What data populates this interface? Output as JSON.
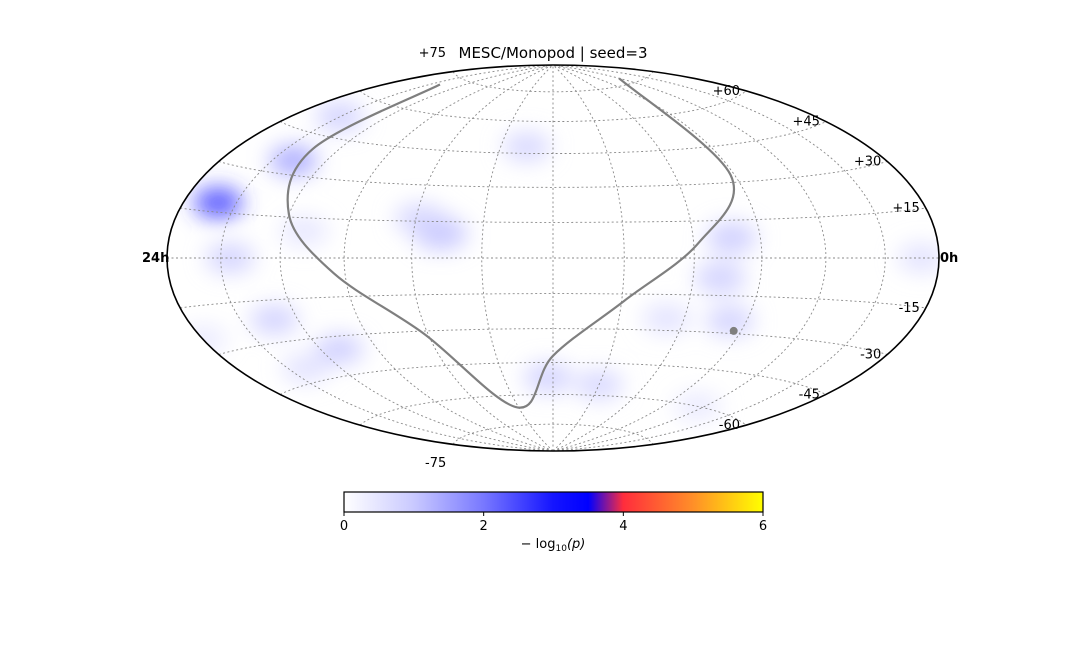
{
  "chart_data": {
    "type": "heatmap",
    "projection": "hammer-aitoff",
    "title": "MESC/Monopod | seed=3",
    "ra_labels": {
      "left": "24h",
      "right": "0h"
    },
    "dec_labels": [
      {
        "value": 75,
        "text": "+75"
      },
      {
        "value": 60,
        "text": "+60"
      },
      {
        "value": 45,
        "text": "+45"
      },
      {
        "value": 30,
        "text": "+30"
      },
      {
        "value": 15,
        "text": "+15"
      },
      {
        "value": -15,
        "text": "-15"
      },
      {
        "value": -30,
        "text": "-30"
      },
      {
        "value": -45,
        "text": "-45"
      },
      {
        "value": -60,
        "text": "-60"
      },
      {
        "value": -75,
        "text": "-75"
      }
    ],
    "grid_lon_step_deg": 30,
    "grid_lat_step_deg": 15,
    "hotspots": [
      {
        "ra_deg": 20,
        "dec_deg": 18,
        "value": 2.6
      },
      {
        "ra_deg": 42,
        "dec_deg": 35,
        "value": 1.5
      },
      {
        "ra_deg": 30,
        "dec_deg": 52,
        "value": 0.9
      },
      {
        "ra_deg": 35,
        "dec_deg": 0,
        "value": 0.9
      },
      {
        "ra_deg": 70,
        "dec_deg": 10,
        "value": 0.5
      },
      {
        "ra_deg": 132,
        "dec_deg": 10,
        "value": 1.1
      },
      {
        "ra_deg": 122,
        "dec_deg": 16,
        "value": 0.8
      },
      {
        "ra_deg": 165,
        "dec_deg": 48,
        "value": 0.8
      },
      {
        "ra_deg": 257,
        "dec_deg": 8,
        "value": 1.0
      },
      {
        "ra_deg": 252,
        "dec_deg": -8,
        "value": 0.9
      },
      {
        "ra_deg": 262,
        "dec_deg": -25,
        "value": 0.9
      },
      {
        "ra_deg": 232,
        "dec_deg": -25,
        "value": 0.6
      },
      {
        "ra_deg": 177,
        "dec_deg": -52,
        "value": 0.9
      },
      {
        "ra_deg": 210,
        "dec_deg": -55,
        "value": 0.8
      },
      {
        "ra_deg": 48,
        "dec_deg": -22,
        "value": 0.9
      },
      {
        "ra_deg": 70,
        "dec_deg": -35,
        "value": 1.0
      },
      {
        "ra_deg": 40,
        "dec_deg": -40,
        "value": 0.6
      },
      {
        "ra_deg": 350,
        "dec_deg": 0,
        "value": 0.6
      },
      {
        "ra_deg": 0,
        "dec_deg": -25,
        "value": 0.4
      },
      {
        "ra_deg": 295,
        "dec_deg": -60,
        "value": 0.4
      }
    ],
    "galactic_plane": {
      "ra_deg": [
        300,
        268,
        242,
        211,
        180,
        149,
        118,
        85,
        60,
        45,
        38
      ],
      "dec_deg": [
        78,
        33,
        6,
        -18,
        -42,
        -66,
        -31,
        -6,
        16,
        40,
        71
      ]
    },
    "galactic_center": {
      "ra_deg": 266.4,
      "dec_deg": -28.9
    },
    "colorbar": {
      "min": 0,
      "max": 6,
      "ticks": [
        0,
        2,
        4,
        6
      ],
      "label_prefix": "− log",
      "label_sub": "10",
      "label_suffix": "(p)",
      "stops": [
        {
          "value": 0,
          "color": "#ffffff"
        },
        {
          "value": 1,
          "color": "#c9c9ff"
        },
        {
          "value": 2,
          "color": "#7878ff"
        },
        {
          "value": 3,
          "color": "#1414ff"
        },
        {
          "value": 3.5,
          "color": "#0000ff"
        },
        {
          "value": 4,
          "color": "#ff2d3c"
        },
        {
          "value": 5,
          "color": "#ff8f28"
        },
        {
          "value": 6,
          "color": "#ffff00"
        }
      ]
    }
  }
}
